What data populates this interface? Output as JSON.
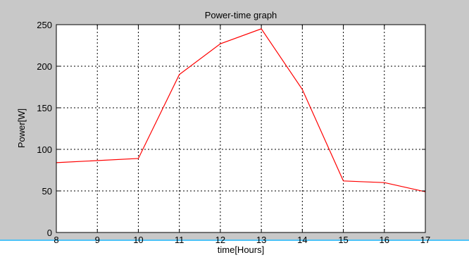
{
  "figure": {
    "background_color": "#c8c8c8",
    "plot_background_color": "#ffffff",
    "border_accent_color": "#4fc3f7"
  },
  "chart_data": {
    "type": "line",
    "title": "Power-time graph",
    "xlabel": "time[Hours]",
    "ylabel": "Power[W]",
    "xlim": [
      8,
      17
    ],
    "ylim": [
      0,
      250
    ],
    "xticks": [
      8,
      9,
      10,
      11,
      12,
      13,
      14,
      15,
      16,
      17
    ],
    "yticks": [
      0,
      50,
      100,
      150,
      200,
      250
    ],
    "grid": true,
    "grid_style": "dotted",
    "series": [
      {
        "color": "#ff0000",
        "x": [
          8,
          10,
          11,
          12,
          13,
          14,
          15,
          16,
          17
        ],
        "y": [
          84,
          89,
          190,
          227,
          245,
          172,
          62,
          60,
          49
        ]
      }
    ]
  }
}
